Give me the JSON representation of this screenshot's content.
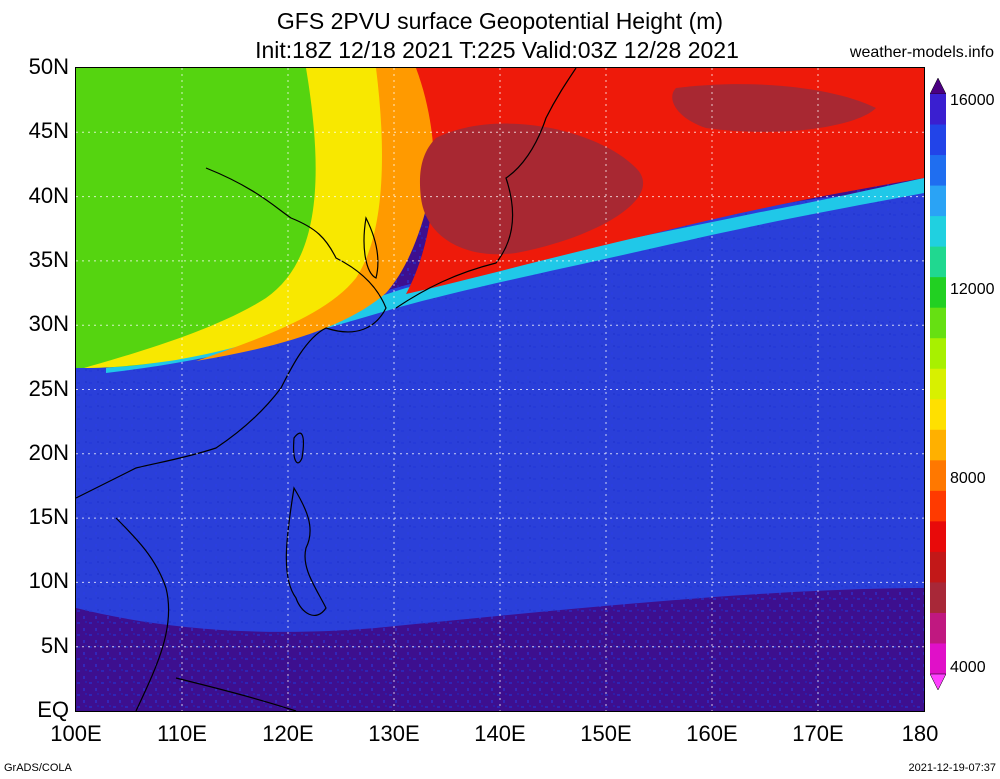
{
  "title": {
    "line1": "GFS 2PVU surface Geopotential Height (m)",
    "line2": "Init:18Z 12/18 2021 T:225 Valid:03Z 12/28 2021"
  },
  "credit": "weather-models.info",
  "y_axis_labels": [
    "50N",
    "45N",
    "40N",
    "35N",
    "30N",
    "25N",
    "20N",
    "15N",
    "10N",
    "5N",
    "EQ"
  ],
  "x_axis_labels": [
    "100E",
    "110E",
    "120E",
    "130E",
    "140E",
    "150E",
    "160E",
    "170E",
    "180"
  ],
  "colorbar": {
    "labels": [
      "16000",
      "12000",
      "8000",
      "4000"
    ],
    "colors": [
      "#4b0082",
      "#3a1fd0",
      "#2244e8",
      "#1f6ef0",
      "#2aa3f5",
      "#20d0e0",
      "#20d890",
      "#22d022",
      "#66e012",
      "#a8f000",
      "#d8f000",
      "#ffe000",
      "#ffb000",
      "#ff7800",
      "#ff3a00",
      "#e80a0a",
      "#c21818",
      "#a82838",
      "#c01880",
      "#e010c8",
      "#ff40ff"
    ]
  },
  "map_colors": {
    "ocean_deep": "#3d0f8f",
    "blue": "#2a3fd9",
    "cyan": "#20c8e8",
    "green": "#55d410",
    "yellow": "#f8e800",
    "orange": "#ff9a00",
    "red": "#ee1a0a",
    "darkred": "#a82832"
  },
  "footer": {
    "left": "GrADS/COLA",
    "right": "2021-12-19-07:37"
  }
}
